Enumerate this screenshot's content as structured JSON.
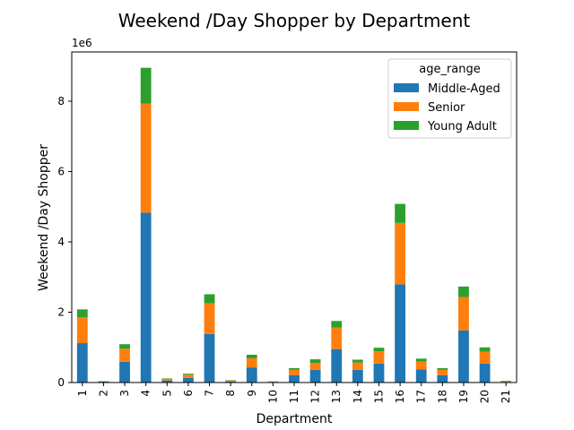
{
  "chart_data": {
    "type": "bar",
    "stacked": true,
    "title": "Weekend /Day Shopper by Department",
    "xlabel": "Department",
    "ylabel": "Weekend /Day Shopper",
    "y_offset_label": "1e6",
    "ylim": [
      0,
      9400000
    ],
    "yticks": [
      0,
      2000000,
      4000000,
      6000000,
      8000000
    ],
    "ytick_labels": [
      "0",
      "2",
      "4",
      "6",
      "8"
    ],
    "categories": [
      "1",
      "2",
      "3",
      "4",
      "5",
      "6",
      "7",
      "8",
      "9",
      "10",
      "11",
      "12",
      "13",
      "14",
      "15",
      "16",
      "17",
      "18",
      "19",
      "20",
      "21"
    ],
    "grid": false,
    "legend_title": "age_range",
    "legend_position": "top-right",
    "series": [
      {
        "name": "Middle-Aged",
        "color": "#1f77b4",
        "values": [
          1120000,
          25000,
          590000,
          4830000,
          60000,
          130000,
          1380000,
          30000,
          430000,
          20000,
          210000,
          360000,
          950000,
          360000,
          540000,
          2790000,
          370000,
          210000,
          1480000,
          540000,
          20000
        ]
      },
      {
        "name": "Senior",
        "color": "#ff7f0e",
        "values": [
          740000,
          10000,
          370000,
          3100000,
          50000,
          90000,
          870000,
          30000,
          260000,
          10000,
          150000,
          200000,
          610000,
          210000,
          350000,
          1750000,
          230000,
          150000,
          950000,
          340000,
          20000
        ]
      },
      {
        "name": "Young Adult",
        "color": "#2ca02c",
        "values": [
          220000,
          5000,
          130000,
          1020000,
          10000,
          30000,
          260000,
          10000,
          100000,
          5000,
          50000,
          100000,
          190000,
          80000,
          100000,
          540000,
          80000,
          50000,
          300000,
          120000,
          10000
        ]
      }
    ]
  }
}
